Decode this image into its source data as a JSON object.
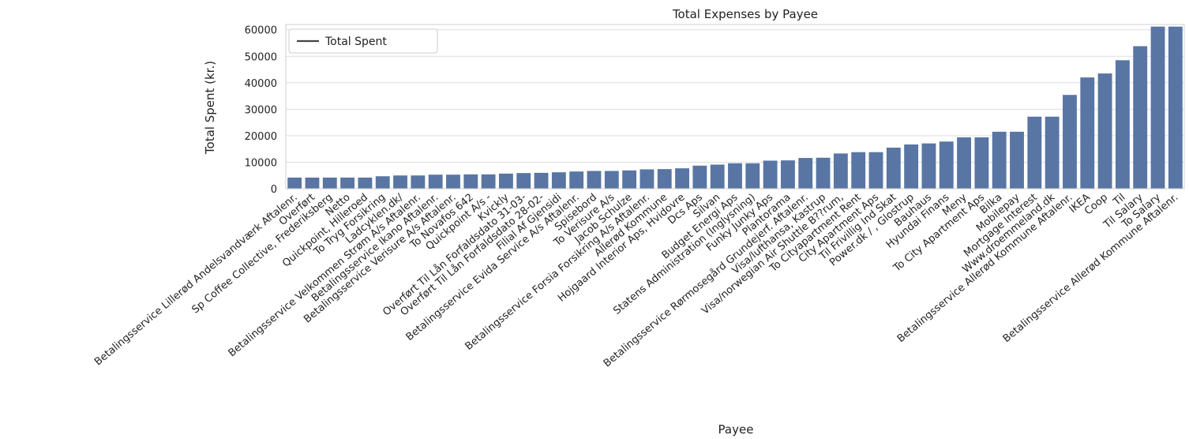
{
  "chart_data": {
    "type": "bar",
    "title": "Total Expenses by Payee",
    "xlabel": "Payee",
    "ylabel": "Total Spent (kr.)",
    "ylim": [
      0,
      62000
    ],
    "yticks": [
      0,
      10000,
      20000,
      30000,
      40000,
      50000,
      60000
    ],
    "grid": true,
    "legend": {
      "position": "top-left",
      "entries": [
        "Total Spent"
      ]
    },
    "bar_color": "#5875a4",
    "categories": [
      "Betalingsservice Lillerød Andelsvandværk Aftalenr.",
      "Overført",
      "Sp Coffee Collective, Frederiksberg",
      "Netto",
      "Quickpoint, Hilleroed",
      "To Tryg Forsikring",
      "Ladcyklen.dk/",
      "Betalingsservice Velkommen Strøm A/s Aftalenr.",
      "Betalingsservice Ikano Aftalenr.",
      "Betalingsservice Verisure A/s Aftalenr.",
      "To Novafos 642",
      "Quickpoint A/s -",
      "Kvickly",
      "Overført Til Lån Forfaldsdato 31-03-",
      "Overført Til Lån Forfaldsdato 28-02-",
      "Filial Af Gjensidi",
      "Betalingsservice Evida Service A/s Aftalenr.",
      "Spisebord",
      "To Verisure A/s",
      "Jacob Schulze",
      "Betalingsservice Forsia Forsikring A/s Aftalenr.",
      "Allerød Kommune",
      "Hojgaard Interior Aps, Hvidovre",
      "Dcs Aps",
      "Silvan",
      "Budget Energi Aps",
      "Statens Administration (Inglysning)",
      "Funky Junky Aps",
      "Plantorama",
      "Betalingsservice Rørmosegård Grundejerf. Aftalenr.",
      "Visa/lufthansa, Kastrup",
      "Visa/norwegian Air Shuttle B??rum,",
      "To Cityapartment Rent",
      "City Apartment Aps",
      "Til Frivillig Ind Skat",
      "Power.dk / , Glostrup",
      "Bauhaus",
      "Hyundai Finans",
      "Meny",
      "To City Apartment Aps",
      "Bilka",
      "Mobilepay",
      "Mortgage Interest",
      "Www.droemmeland.dk",
      "Betalingsservice Allerød Kommune Aftalenr.",
      "IKEA",
      "Coop",
      "Til",
      "Til Salary",
      "To Salary",
      "Betalingsservice Allerød Kommune Aftalenr."
    ],
    "values": [
      4200,
      4200,
      4200,
      4200,
      4200,
      4700,
      5000,
      5000,
      5300,
      5300,
      5400,
      5400,
      5700,
      5900,
      6000,
      6200,
      6500,
      6700,
      6700,
      6900,
      7300,
      7400,
      7700,
      8700,
      9100,
      9600,
      9600,
      10600,
      10700,
      11600,
      11700,
      13300,
      13800,
      13800,
      15500,
      16700,
      17100,
      17800,
      19400,
      19400,
      21500,
      21500,
      27200,
      27200,
      35400,
      42000,
      43500,
      48500,
      53800,
      61200,
      61200
    ]
  }
}
